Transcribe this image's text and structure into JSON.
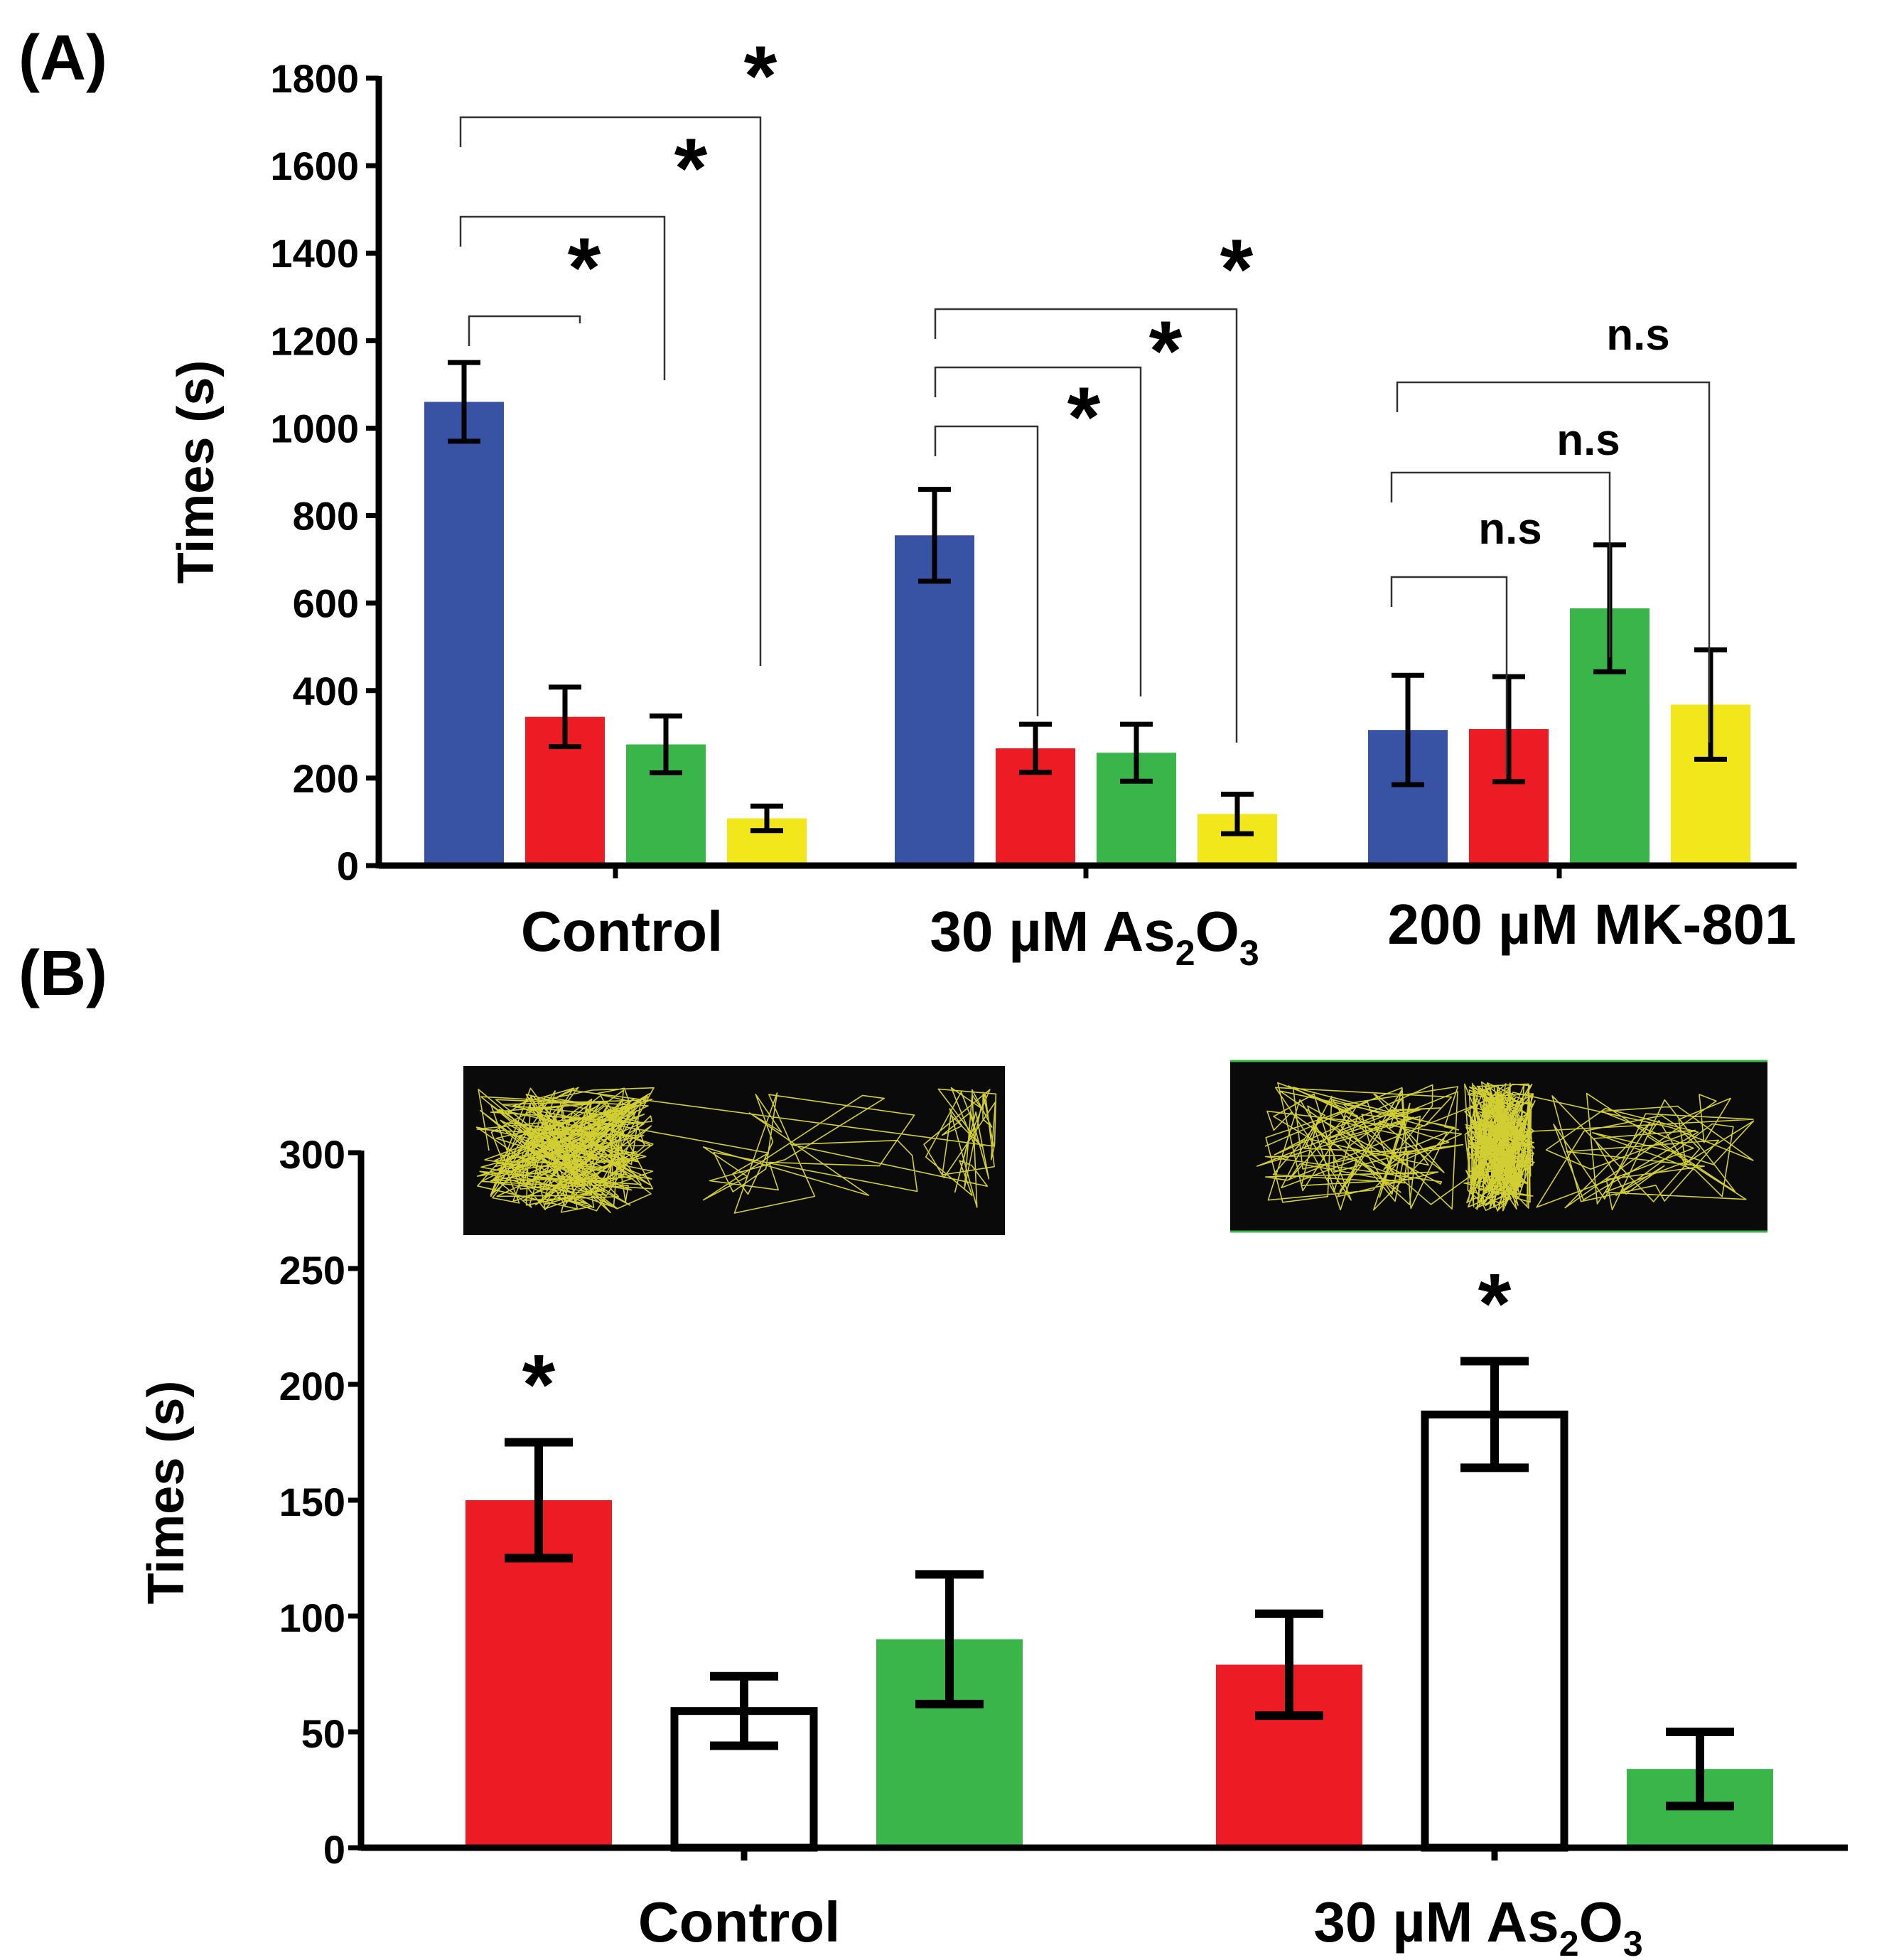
{
  "colors": {
    "blue": "#3953a4",
    "red": "#ed1c24",
    "green": "#39b54a",
    "yellow": "#f2e71a",
    "open": "#ffffff",
    "axis": "#000000",
    "track_bg": "#0a0a0a",
    "track_line": "#e6e337",
    "track_edge": "#39b54a"
  },
  "chart_data": [
    {
      "panel": "(A)",
      "type": "bar",
      "ylabel": "Times (s)",
      "ylim": [
        0,
        1800
      ],
      "yticks": [
        0,
        200,
        400,
        600,
        800,
        1000,
        1200,
        1400,
        1600,
        1800
      ],
      "categories": [
        "Control",
        "30 µM As₂O₃",
        "200 µM MK-801"
      ],
      "category_labels": [
        {
          "main": "Control"
        },
        {
          "main": "30 µM As",
          "sub1": "2",
          "mid": "O",
          "sub2": "3"
        },
        {
          "main": "200 µM MK-801"
        }
      ],
      "series": [
        {
          "name": "blue",
          "color": "blue",
          "values": [
            1060,
            755,
            310
          ],
          "errors": [
            90,
            105,
            125
          ]
        },
        {
          "name": "red",
          "color": "red",
          "values": [
            340,
            268,
            312
          ],
          "errors": [
            68,
            55,
            120
          ]
        },
        {
          "name": "green",
          "color": "green",
          "values": [
            277,
            258,
            588
          ],
          "errors": [
            65,
            65,
            145
          ]
        },
        {
          "name": "yellow",
          "color": "yellow",
          "values": [
            108,
            118,
            368
          ],
          "errors": [
            28,
            45,
            125
          ]
        }
      ],
      "comparisons": [
        {
          "group": 0,
          "from": 0,
          "to": 1,
          "label": "*"
        },
        {
          "group": 0,
          "from": 0,
          "to": 2,
          "label": "*"
        },
        {
          "group": 0,
          "from": 0,
          "to": 3,
          "label": "*"
        },
        {
          "group": 1,
          "from": 0,
          "to": 1,
          "label": "*"
        },
        {
          "group": 1,
          "from": 0,
          "to": 2,
          "label": "*"
        },
        {
          "group": 1,
          "from": 0,
          "to": 3,
          "label": "*"
        },
        {
          "group": 2,
          "from": 0,
          "to": 1,
          "label": "n.s"
        },
        {
          "group": 2,
          "from": 0,
          "to": 2,
          "label": "n.s"
        },
        {
          "group": 2,
          "from": 0,
          "to": 3,
          "label": "n.s"
        }
      ]
    },
    {
      "panel": "(B)",
      "type": "bar",
      "ylabel": "Times (s)",
      "ylim": [
        0,
        300
      ],
      "yticks": [
        0,
        50,
        100,
        150,
        200,
        250,
        300
      ],
      "categories": [
        "Control",
        "30 µM As₂O₃"
      ],
      "category_labels": [
        {
          "main": "Control"
        },
        {
          "main": "30 µM As",
          "sub1": "2",
          "mid": "O",
          "sub2": "3"
        }
      ],
      "series": [
        {
          "name": "red",
          "color": "red",
          "values": [
            150,
            79
          ],
          "errors": [
            25,
            22
          ]
        },
        {
          "name": "open",
          "color": "open",
          "values": [
            59,
            187
          ],
          "errors": [
            15,
            23
          ]
        },
        {
          "name": "green",
          "color": "green",
          "values": [
            90,
            34
          ],
          "errors": [
            28,
            16
          ]
        }
      ],
      "annotations": [
        {
          "group": 0,
          "series": 0,
          "label": "*"
        },
        {
          "group": 1,
          "series": 1,
          "label": "*"
        }
      ],
      "track_images": [
        "Control",
        "30 µM As₂O₃"
      ]
    }
  ]
}
